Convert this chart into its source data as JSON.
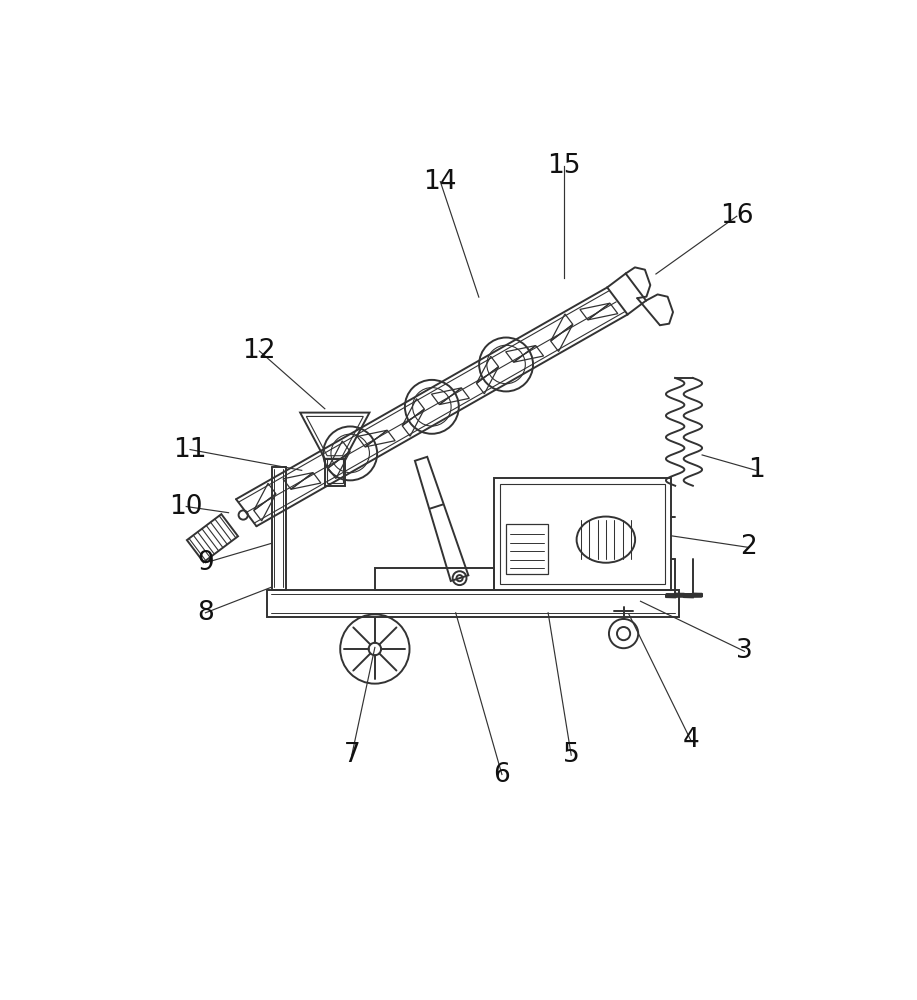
{
  "background_color": "#ffffff",
  "line_color": "#333333",
  "line_width": 1.4,
  "label_fontsize": 19,
  "fig_width": 9.17,
  "fig_height": 10.0,
  "dpi": 100
}
